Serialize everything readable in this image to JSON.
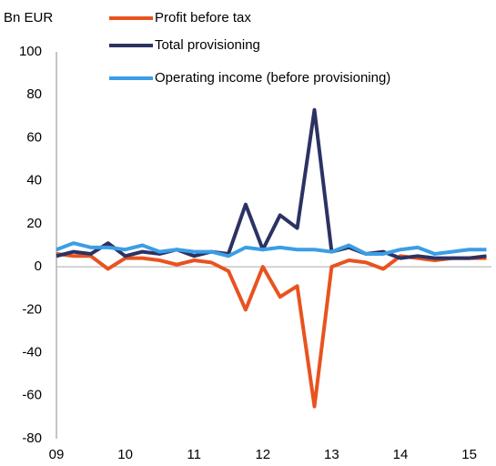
{
  "chart_data": {
    "type": "line",
    "y_axis_label": "Bn EUR",
    "categories": [
      "09",
      null,
      null,
      null,
      "10",
      null,
      null,
      null,
      "11",
      null,
      null,
      null,
      "12",
      null,
      null,
      null,
      "13",
      null,
      null,
      null,
      "14",
      null,
      null,
      null,
      "15",
      null
    ],
    "series": [
      {
        "name": "Profit before tax",
        "color": "#e8531f",
        "values": [
          6,
          5,
          5,
          -1,
          4,
          4,
          3,
          1,
          3,
          2,
          -2,
          -20,
          0,
          -14,
          -9,
          -65,
          0,
          3,
          2,
          -1,
          5,
          4,
          3,
          4,
          4,
          4
        ]
      },
      {
        "name": "Total provisioning",
        "color": "#2c3263",
        "values": [
          5,
          7,
          6,
          11,
          5,
          7,
          6,
          8,
          5,
          7,
          6,
          29,
          8,
          24,
          18,
          73,
          7,
          9,
          6,
          7,
          4,
          5,
          4,
          4,
          4,
          5
        ]
      },
      {
        "name": "Operating income (before provisioning)",
        "color": "#3a9ee6",
        "values": [
          8,
          11,
          9,
          9,
          8,
          10,
          7,
          8,
          7,
          7,
          5,
          9,
          8,
          9,
          8,
          8,
          7,
          10,
          6,
          6,
          8,
          9,
          6,
          7,
          8,
          8
        ]
      }
    ],
    "ylim": [
      -80,
      100
    ],
    "yticks": [
      -80,
      -60,
      -40,
      -20,
      0,
      20,
      40,
      60,
      80,
      100
    ],
    "grid": false
  }
}
